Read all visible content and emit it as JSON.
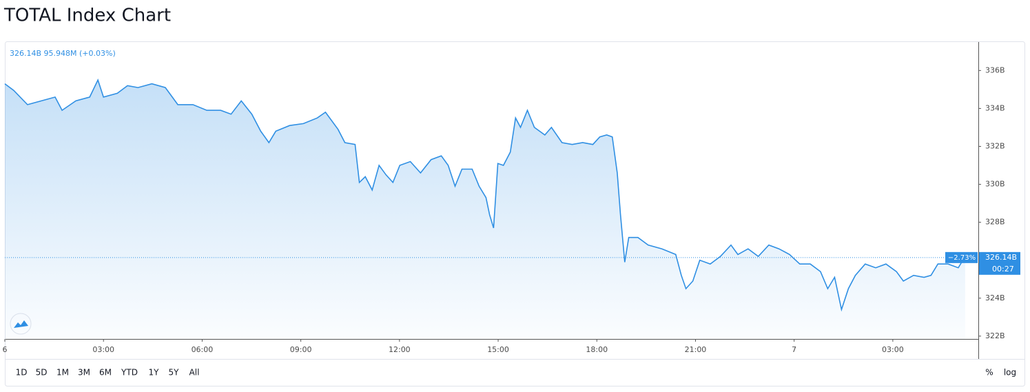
{
  "chart_data": {
    "type": "area",
    "title": "TOTAL Index Chart",
    "legend_text": "326.14B 95.948M (+0.03%)",
    "color": "#2f8fe3",
    "x": [
      0,
      0.27,
      0.69,
      1.11,
      1.53,
      1.74,
      2.16,
      2.58,
      2.83,
      3.0,
      3.42,
      3.73,
      4.05,
      4.47,
      4.88,
      5.26,
      5.72,
      6.14,
      6.56,
      6.88,
      7.19,
      7.51,
      7.78,
      8.03,
      8.24,
      8.66,
      9.08,
      9.5,
      9.75,
      10.13,
      10.34,
      10.65,
      10.78,
      10.96,
      11.17,
      11.38,
      11.59,
      11.8,
      12.01,
      12.33,
      12.64,
      12.96,
      13.27,
      13.48,
      13.69,
      13.9,
      14.21,
      14.42,
      14.63,
      14.74,
      14.86,
      14.99,
      15.16,
      15.37,
      15.53,
      15.68,
      15.89,
      16.1,
      16.42,
      16.62,
      16.94,
      17.25,
      17.57,
      17.88,
      18.09,
      18.3,
      18.47,
      18.62,
      18.72,
      18.85,
      18.97,
      19.25,
      19.56,
      19.98,
      20.4,
      20.57,
      20.71,
      20.92,
      21.13,
      21.45,
      21.76,
      22.08,
      22.29,
      22.6,
      22.91,
      23.23,
      23.54,
      23.86,
      24.17,
      24.49,
      24.8,
      25.02,
      25.23,
      25.44,
      25.65,
      25.86,
      26.16,
      26.48,
      26.79,
      27.11,
      27.32,
      27.63,
      27.95,
      28.16,
      28.37,
      28.68,
      28.99,
      29.2
    ],
    "values": [
      335.3,
      334.95,
      334.2,
      334.4,
      334.6,
      333.9,
      334.4,
      334.6,
      335.5,
      334.6,
      334.8,
      335.2,
      335.1,
      335.3,
      335.1,
      334.2,
      334.2,
      333.9,
      333.9,
      333.7,
      334.4,
      333.7,
      332.8,
      332.2,
      332.8,
      333.1,
      333.2,
      333.5,
      333.8,
      332.9,
      332.2,
      332.1,
      330.1,
      330.4,
      329.7,
      331.0,
      330.5,
      330.1,
      331.0,
      331.2,
      330.6,
      331.3,
      331.5,
      331.0,
      329.9,
      330.8,
      330.8,
      329.9,
      329.3,
      328.4,
      327.7,
      331.1,
      331.0,
      331.7,
      333.5,
      333.0,
      333.9,
      333.0,
      332.6,
      333.0,
      332.2,
      332.1,
      332.2,
      332.1,
      332.5,
      332.6,
      332.5,
      330.6,
      328.4,
      325.9,
      327.2,
      327.2,
      326.8,
      326.6,
      326.3,
      325.2,
      324.5,
      324.9,
      326.0,
      325.8,
      326.2,
      326.8,
      326.3,
      326.6,
      326.2,
      326.8,
      326.6,
      326.3,
      325.8,
      325.8,
      325.4,
      324.5,
      325.1,
      323.4,
      324.5,
      325.2,
      325.8,
      325.6,
      325.8,
      325.4,
      324.9,
      325.2,
      325.1,
      325.2,
      325.8,
      325.8,
      325.6,
      326.2
    ],
    "xlim": [
      0,
      29.6
    ],
    "ylim": [
      321.85,
      337.5
    ],
    "xticks": [
      {
        "value": 0,
        "label": "6"
      },
      {
        "value": 3,
        "label": "03:00"
      },
      {
        "value": 6,
        "label": "06:00"
      },
      {
        "value": 9,
        "label": "09:00"
      },
      {
        "value": 12,
        "label": "12:00"
      },
      {
        "value": 15,
        "label": "15:00"
      },
      {
        "value": 18,
        "label": "18:00"
      },
      {
        "value": 21,
        "label": "21:00"
      },
      {
        "value": 24,
        "label": "7"
      },
      {
        "value": 27,
        "label": "03:00"
      }
    ],
    "yticks": [
      {
        "value": 322,
        "label": "322B"
      },
      {
        "value": 324,
        "label": "324B"
      },
      {
        "value": 326,
        "label": "326B"
      },
      {
        "value": 328,
        "label": "328B"
      },
      {
        "value": 330,
        "label": "330B"
      },
      {
        "value": 332,
        "label": "332B"
      },
      {
        "value": 334,
        "label": "334B"
      },
      {
        "value": 336,
        "label": "336B"
      }
    ],
    "last_price": {
      "value": 326.14,
      "label": "326.14B"
    },
    "last_change": "−2.73%",
    "countdown": "00:27",
    "range_buttons": [
      "1D",
      "5D",
      "1M",
      "3M",
      "6M",
      "YTD",
      "1Y",
      "5Y",
      "All"
    ],
    "scale_buttons": [
      "%",
      "log"
    ]
  }
}
